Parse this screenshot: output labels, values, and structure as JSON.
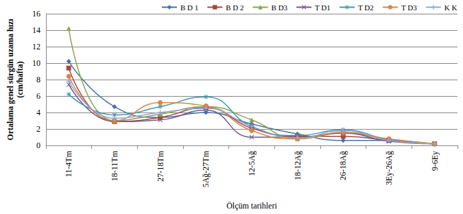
{
  "chart_data": {
    "type": "line",
    "x_label": "Ölçüm tarihleri",
    "y_label": "Ortalama genel sürgün uzama hızı\n(cm/hafta)",
    "categories": [
      "11-4Tm",
      "18-11Tm",
      "27-18Tm",
      "5Ağ-27Tm",
      "12-5Ağ",
      "18-12Ağ",
      "26-18Ağ",
      "3Ey-26Ağ",
      "9-6Ey"
    ],
    "series": [
      {
        "name": "B D 1",
        "color": "#4572A7",
        "marker": "diamond",
        "values": [
          10.2,
          4.7,
          3.4,
          4.0,
          2.6,
          1.4,
          0.6,
          0.6,
          0.1
        ]
      },
      {
        "name": "B D 2",
        "color": "#AA4643",
        "marker": "square",
        "values": [
          9.4,
          2.9,
          3.4,
          4.6,
          2.1,
          1.1,
          1.1,
          0.6,
          0.2
        ]
      },
      {
        "name": "B D3",
        "color": "#89A54E",
        "marker": "triangle",
        "values": [
          14.2,
          3.0,
          3.8,
          4.7,
          3.1,
          0.8,
          1.5,
          0.7,
          0.2
        ]
      },
      {
        "name": "T D1",
        "color": "#71588F",
        "marker": "x",
        "values": [
          7.4,
          2.9,
          3.1,
          4.3,
          1.0,
          1.0,
          1.5,
          0.5,
          0.2
        ]
      },
      {
        "name": "T D2",
        "color": "#4198AF",
        "marker": "asterisk",
        "values": [
          6.2,
          3.7,
          4.7,
          5.9,
          2.3,
          1.2,
          1.9,
          0.7,
          0.2
        ]
      },
      {
        "name": "T D3",
        "color": "#DB843D",
        "marker": "circle",
        "values": [
          8.4,
          3.0,
          5.2,
          4.8,
          1.8,
          0.8,
          1.6,
          0.8,
          0.2
        ]
      },
      {
        "name": "K K",
        "color": "#93A9CF",
        "marker": "plus",
        "values": [
          7.8,
          3.3,
          4.0,
          4.5,
          2.3,
          0.9,
          1.8,
          0.6,
          0.2
        ]
      }
    ],
    "ylim": [
      0,
      16
    ],
    "yticks": [
      0,
      2,
      4,
      6,
      8,
      10,
      12,
      14,
      16
    ],
    "grid": true,
    "legend": "top"
  }
}
